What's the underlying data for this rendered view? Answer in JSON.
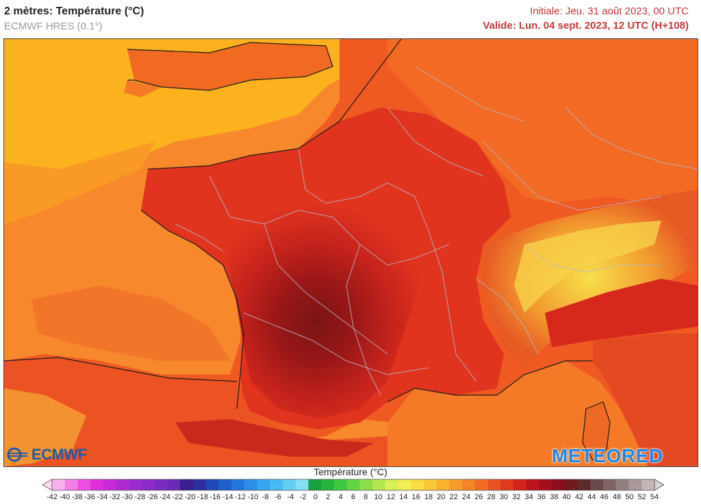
{
  "header": {
    "title": "2 mètres: Température (°C)",
    "model": "ECMWF HRES (0.1°)",
    "initial": "Initiale: Jeu. 31 août 2023, 00 UTC",
    "valid": "Valide: Lun. 04 sept. 2023, 12 UTC (H+108)"
  },
  "logos": {
    "ecmwf": "ECMWF",
    "meteored": "METEORED"
  },
  "legend": {
    "title": "Température (°C)",
    "ticks": [
      "-42",
      "-40",
      "-38",
      "-36",
      "-34",
      "-32",
      "-30",
      "-28",
      "-26",
      "-24",
      "-22",
      "-20",
      "-18",
      "-16",
      "-14",
      "-12",
      "-10",
      "-8",
      "-6",
      "-4",
      "-2",
      "0",
      "2",
      "4",
      "6",
      "8",
      "10",
      "12",
      "14",
      "16",
      "18",
      "20",
      "22",
      "24",
      "26",
      "28",
      "30",
      "32",
      "34",
      "36",
      "38",
      "40",
      "42",
      "44",
      "46",
      "48",
      "50",
      "52",
      "54"
    ],
    "colors": [
      "#ffd9f5",
      "#f8b3ee",
      "#f27ee6",
      "#ec4fe0",
      "#e02ed8",
      "#c72ad6",
      "#b02ad4",
      "#9c2ad0",
      "#8a2ac8",
      "#7a2abf",
      "#6a2ab5",
      "#3a1e8f",
      "#2a2f9f",
      "#1f47b8",
      "#1f5fcc",
      "#2376dc",
      "#2b8fe8",
      "#35a5ef",
      "#47bbf3",
      "#62cef5",
      "#85def6",
      "#17a13b",
      "#25b53f",
      "#3ec942",
      "#62d645",
      "#8ae04a",
      "#b3e84f",
      "#d8ef55",
      "#f2ee55",
      "#f8dd45",
      "#fbc93a",
      "#fbb331",
      "#f89c2b",
      "#f58526",
      "#f06d23",
      "#ea5221",
      "#e2381f",
      "#d4221d",
      "#bc121b",
      "#a40d1a",
      "#8c0c1b",
      "#6f1a1f",
      "#5e2a2a",
      "#6d4a4a",
      "#7f6464",
      "#947f7f",
      "#aa9a9a",
      "#c2b6b6",
      "#dcd3d3"
    ]
  },
  "map": {
    "colors": {
      "sea_north": "#fcb11f",
      "sea_atlantic": "#f88d2a",
      "mainland_hot": "#e0341f",
      "core_hot": "#8e1616",
      "mediterranean": "#f57a27",
      "alps_cool": "#f4c33a",
      "borders": "#b8b8c8"
    }
  }
}
